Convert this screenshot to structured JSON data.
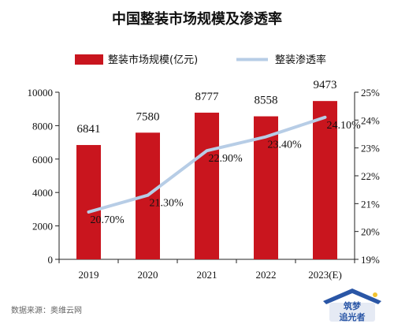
{
  "colors": {
    "bar": "#c9151e",
    "line": "#b7cde6",
    "axis": "#222222",
    "text": "#111111",
    "source_text": "#666666",
    "logo_blue": "#2a56a6",
    "logo_yellow": "#f2c230"
  },
  "chart_data": {
    "type": "bar",
    "title": "中国整装市场规模及渗透率",
    "categories": [
      "2019",
      "2020",
      "2021",
      "2022",
      "2023(E)"
    ],
    "series": [
      {
        "name": "整装市场规模(亿元)",
        "type": "bar",
        "axis": "left",
        "values": [
          6841,
          7580,
          8777,
          8558,
          9473
        ],
        "labels": [
          "6841",
          "7580",
          "8777",
          "8558",
          "9473"
        ]
      },
      {
        "name": "整装渗透率",
        "type": "line",
        "axis": "right",
        "values": [
          20.7,
          21.3,
          22.9,
          23.4,
          24.1
        ],
        "labels": [
          "20.70%",
          "21.30%",
          "22.90%",
          "23.40%",
          "24.10%"
        ]
      }
    ],
    "y_left": {
      "range": [
        0,
        10000
      ],
      "ticks": [
        0,
        2000,
        4000,
        6000,
        8000,
        10000
      ],
      "tick_labels": [
        "0",
        "2000",
        "4000",
        "6000",
        "8000",
        "10000"
      ]
    },
    "y_right": {
      "range": [
        19,
        25
      ],
      "ticks": [
        19,
        20,
        21,
        22,
        23,
        24,
        25
      ],
      "tick_labels": [
        "19%",
        "20%",
        "21%",
        "22%",
        "23%",
        "24%",
        "25%"
      ]
    },
    "xlabel": "",
    "ylabel": "",
    "legend_position": "top",
    "grid": false
  },
  "source": "数据来源：奥维云网",
  "logo": {
    "line1": "筑梦",
    "line2": "追光者"
  }
}
